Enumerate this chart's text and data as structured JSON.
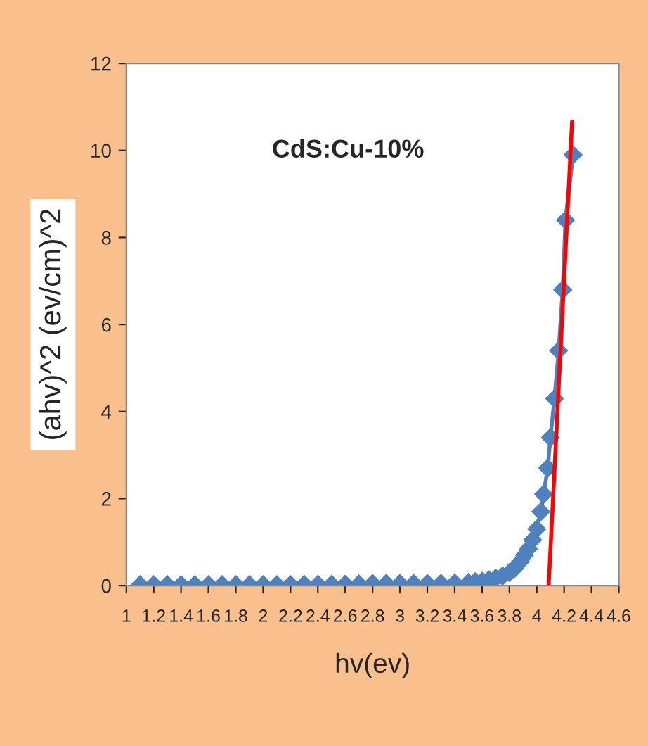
{
  "chart_data": {
    "type": "line",
    "xlabel": "hv(ev)",
    "ylabel": "(ahv)^2 (ev/cm)^2",
    "annotations": [
      "CdS:Cu-10%"
    ],
    "xlim": [
      1,
      4.6
    ],
    "xticks": [
      1,
      1.2,
      1.4,
      1.6,
      1.8,
      2,
      2.2,
      2.4,
      2.6,
      2.8,
      3,
      3.2,
      3.4,
      3.6,
      3.8,
      4,
      4.2,
      4.4,
      4.6
    ],
    "ylim": [
      0,
      12
    ],
    "yticks": [
      0,
      2,
      4,
      6,
      8,
      10,
      12
    ],
    "grid": false,
    "legend": false,
    "series": [
      {
        "color": "#4f81bd",
        "marker": "diamond",
        "line_style": "solid",
        "x": [
          1.1,
          1.2,
          1.3,
          1.4,
          1.5,
          1.6,
          1.7,
          1.8,
          1.9,
          2.0,
          2.1,
          2.2,
          2.3,
          2.4,
          2.5,
          2.6,
          2.7,
          2.8,
          2.9,
          3.0,
          3.1,
          3.2,
          3.3,
          3.4,
          3.5,
          3.55,
          3.6,
          3.65,
          3.7,
          3.75,
          3.8,
          3.84,
          3.88,
          3.91,
          3.94,
          3.97,
          4.0,
          4.03,
          4.05,
          4.08,
          4.1,
          4.13,
          4.16,
          4.19,
          4.21,
          4.265
        ],
        "values": [
          0.02,
          0.02,
          0.02,
          0.02,
          0.02,
          0.02,
          0.02,
          0.02,
          0.02,
          0.02,
          0.02,
          0.02,
          0.03,
          0.03,
          0.03,
          0.03,
          0.04,
          0.05,
          0.05,
          0.05,
          0.05,
          0.05,
          0.05,
          0.06,
          0.07,
          0.09,
          0.1,
          0.13,
          0.17,
          0.22,
          0.3,
          0.4,
          0.55,
          0.7,
          0.85,
          1.05,
          1.3,
          1.7,
          2.1,
          2.7,
          3.4,
          4.3,
          5.4,
          6.8,
          8.4,
          9.9
        ]
      },
      {
        "color": "#ff0000",
        "marker": "none",
        "line_style": "solid",
        "x": [
          4.087,
          4.258
        ],
        "values": [
          0,
          10.66
        ]
      }
    ]
  }
}
